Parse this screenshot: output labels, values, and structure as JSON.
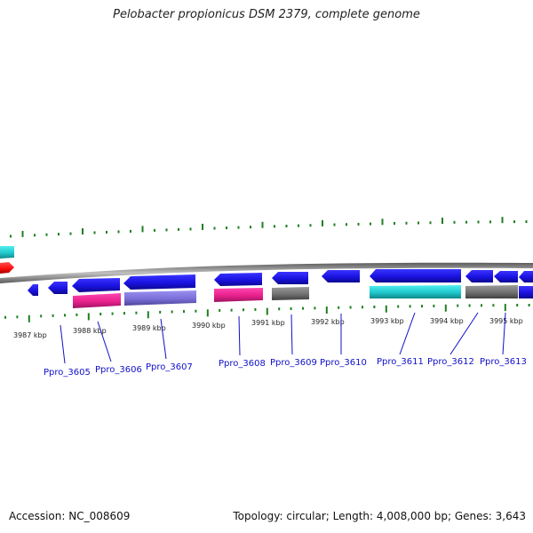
{
  "title": "Pelobacter propionicus DSM 2379, complete genome",
  "footer": {
    "accession": "Accession: NC_008609",
    "topology": "Topology: circular; Length: 4,008,000 bp; Genes: 3,643"
  },
  "kbp_labels": [
    "3987 kbp",
    "3988 kbp",
    "3989 kbp",
    "3990 kbp",
    "3991 kbp",
    "3992 kbp",
    "3993 kbp",
    "3994 kbp",
    "3995 kbp"
  ],
  "gene_labels": [
    "Ppro_3605",
    "Ppro_3606",
    "Ppro_3607",
    "Ppro_3608",
    "Ppro_3609",
    "Ppro_3610",
    "Ppro_3611",
    "Ppro_3612",
    "Ppro_3613"
  ],
  "colors": {
    "cds": "#1a12e0",
    "pink": "#e8208c",
    "lavender": "#7b6fd8",
    "teal": "#20c8cc",
    "gray": "#707070",
    "red": "#ff1010",
    "tick": "#1f7f1f",
    "backbone": "#8a8a8a",
    "link": "#1010c8"
  }
}
